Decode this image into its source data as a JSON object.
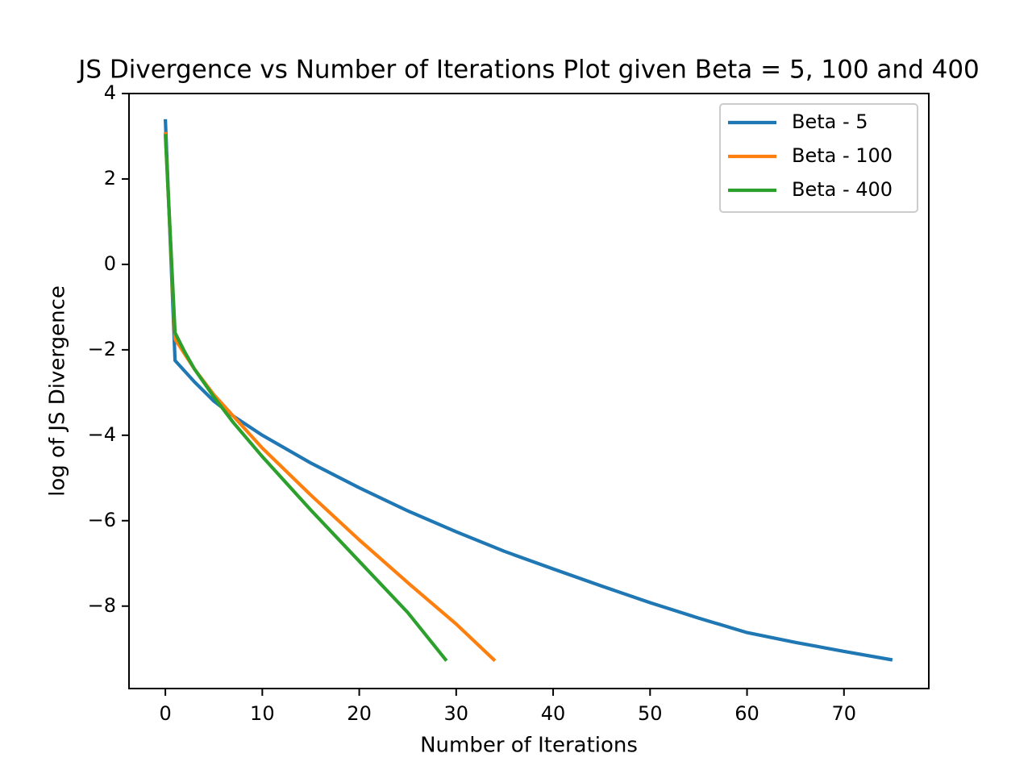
{
  "chart_data": {
    "type": "line",
    "title": "JS Divergence vs Number of Iterations Plot given Beta = 5, 100 and 400",
    "x_label": "Number of Iterations",
    "y_label": "log of JS Divergence",
    "xlim": [
      -3.75,
      78.75
    ],
    "ylim": [
      -9.93,
      4.0
    ],
    "xticks": [
      0,
      10,
      20,
      30,
      40,
      50,
      60,
      70
    ],
    "yticks": [
      {
        "value": -8,
        "label": "−8"
      },
      {
        "value": -6,
        "label": "−6"
      },
      {
        "value": -4,
        "label": "−4"
      },
      {
        "value": -2,
        "label": "−2"
      },
      0,
      2,
      4
    ],
    "legend": "upper right",
    "series": [
      {
        "name": "Beta - 5",
        "color": "#1f77b4",
        "x": [
          0,
          1,
          2,
          3,
          5,
          7,
          10,
          15,
          20,
          25,
          30,
          35,
          40,
          45,
          50,
          55,
          60,
          65,
          70,
          75
        ],
        "values": [
          3.4,
          -2.25,
          -2.5,
          -2.75,
          -3.2,
          -3.55,
          -4.0,
          -4.65,
          -5.23,
          -5.77,
          -6.26,
          -6.72,
          -7.13,
          -7.53,
          -7.92,
          -8.28,
          -8.62,
          -8.85,
          -9.06,
          -9.26
        ]
      },
      {
        "name": "Beta - 100",
        "color": "#ff7f0e",
        "x": [
          0,
          1,
          2,
          3,
          5,
          7,
          10,
          15,
          20,
          25,
          30,
          34
        ],
        "values": [
          3.1,
          -1.75,
          -2.1,
          -2.45,
          -3.05,
          -3.55,
          -4.3,
          -5.4,
          -6.45,
          -7.45,
          -8.42,
          -9.28
        ]
      },
      {
        "name": "Beta - 400",
        "color": "#2ca02c",
        "x": [
          0,
          1,
          2,
          3,
          5,
          7,
          10,
          15,
          20,
          25,
          29
        ],
        "values": [
          3.05,
          -1.6,
          -2.05,
          -2.45,
          -3.1,
          -3.7,
          -4.5,
          -5.75,
          -6.95,
          -8.15,
          -9.28
        ]
      }
    ]
  }
}
